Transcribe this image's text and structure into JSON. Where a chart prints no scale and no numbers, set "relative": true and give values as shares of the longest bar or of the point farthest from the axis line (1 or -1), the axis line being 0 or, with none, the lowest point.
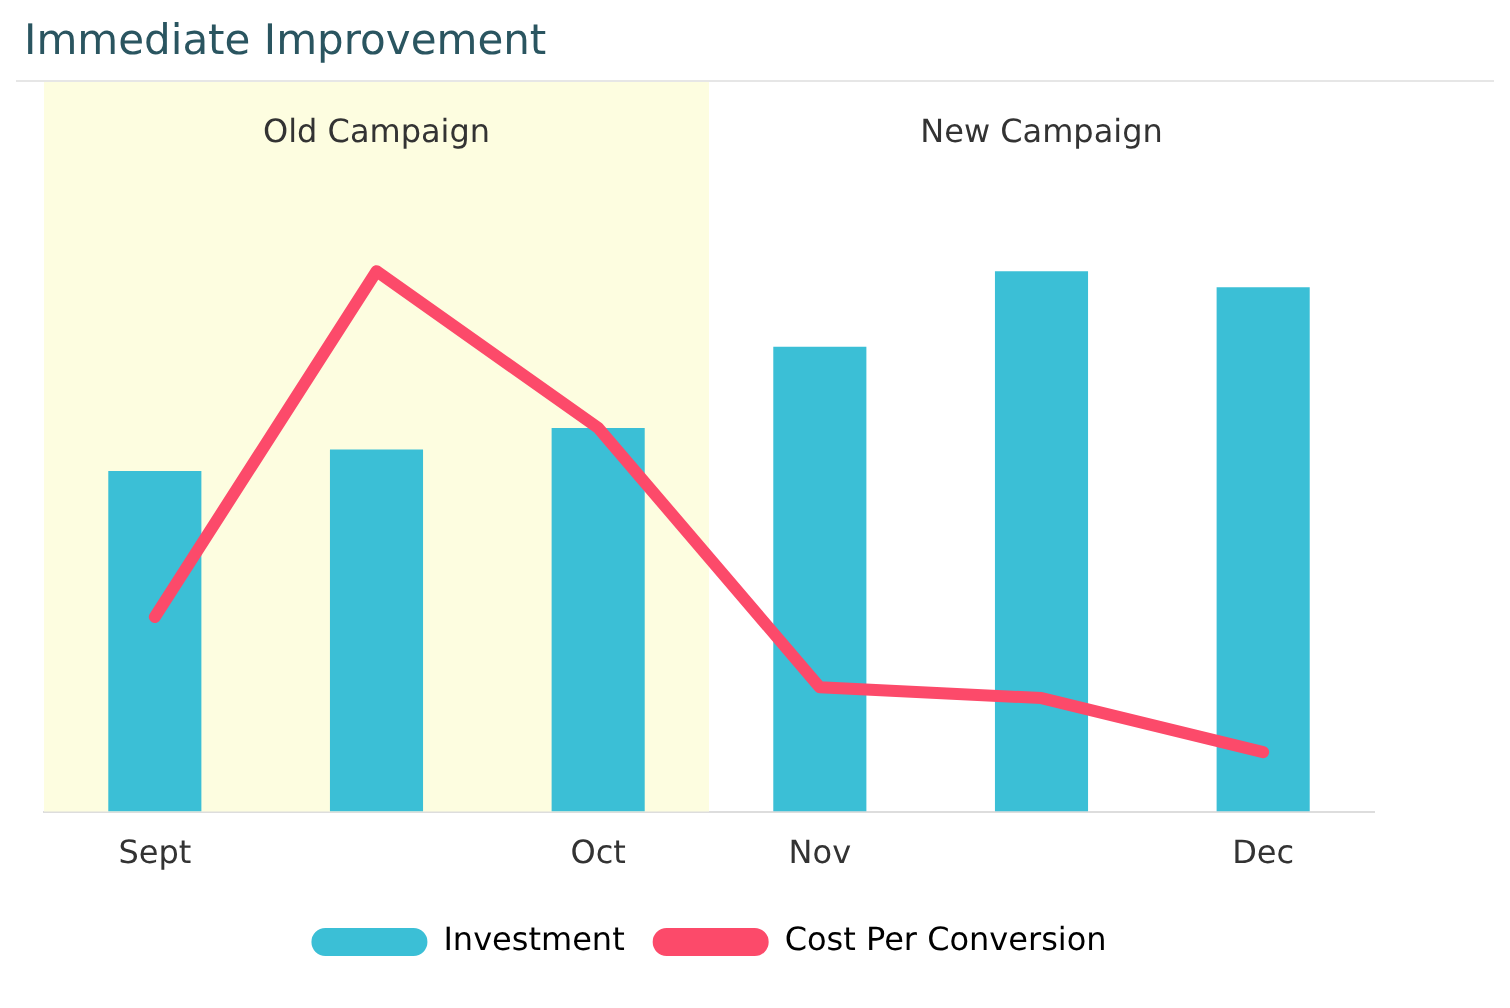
{
  "chart_data": {
    "type": "bar",
    "title": "Immediate Improvement",
    "relative": true,
    "categories": [
      "Sept",
      null,
      "Oct",
      "Nov",
      null,
      "Dec"
    ],
    "series": [
      {
        "name": "Investment",
        "color": "#3bbfd6",
        "values": [
          0.63,
          0.67,
          0.71,
          0.86,
          1,
          0.97
        ]
      },
      {
        "name": "Cost Per Conversion",
        "type": "line",
        "color": "#fc4a6a",
        "values": [
          0.36,
          1,
          0.71,
          0.23,
          0.21,
          0.11
        ]
      }
    ],
    "bands": [
      {
        "axis": "x",
        "from": "Sept",
        "to": "Oct",
        "label": "Old Campaign",
        "color": "#fdfde0"
      }
    ],
    "annotations": [
      {
        "text": "New Campaign"
      }
    ],
    "legend": "bottom"
  }
}
